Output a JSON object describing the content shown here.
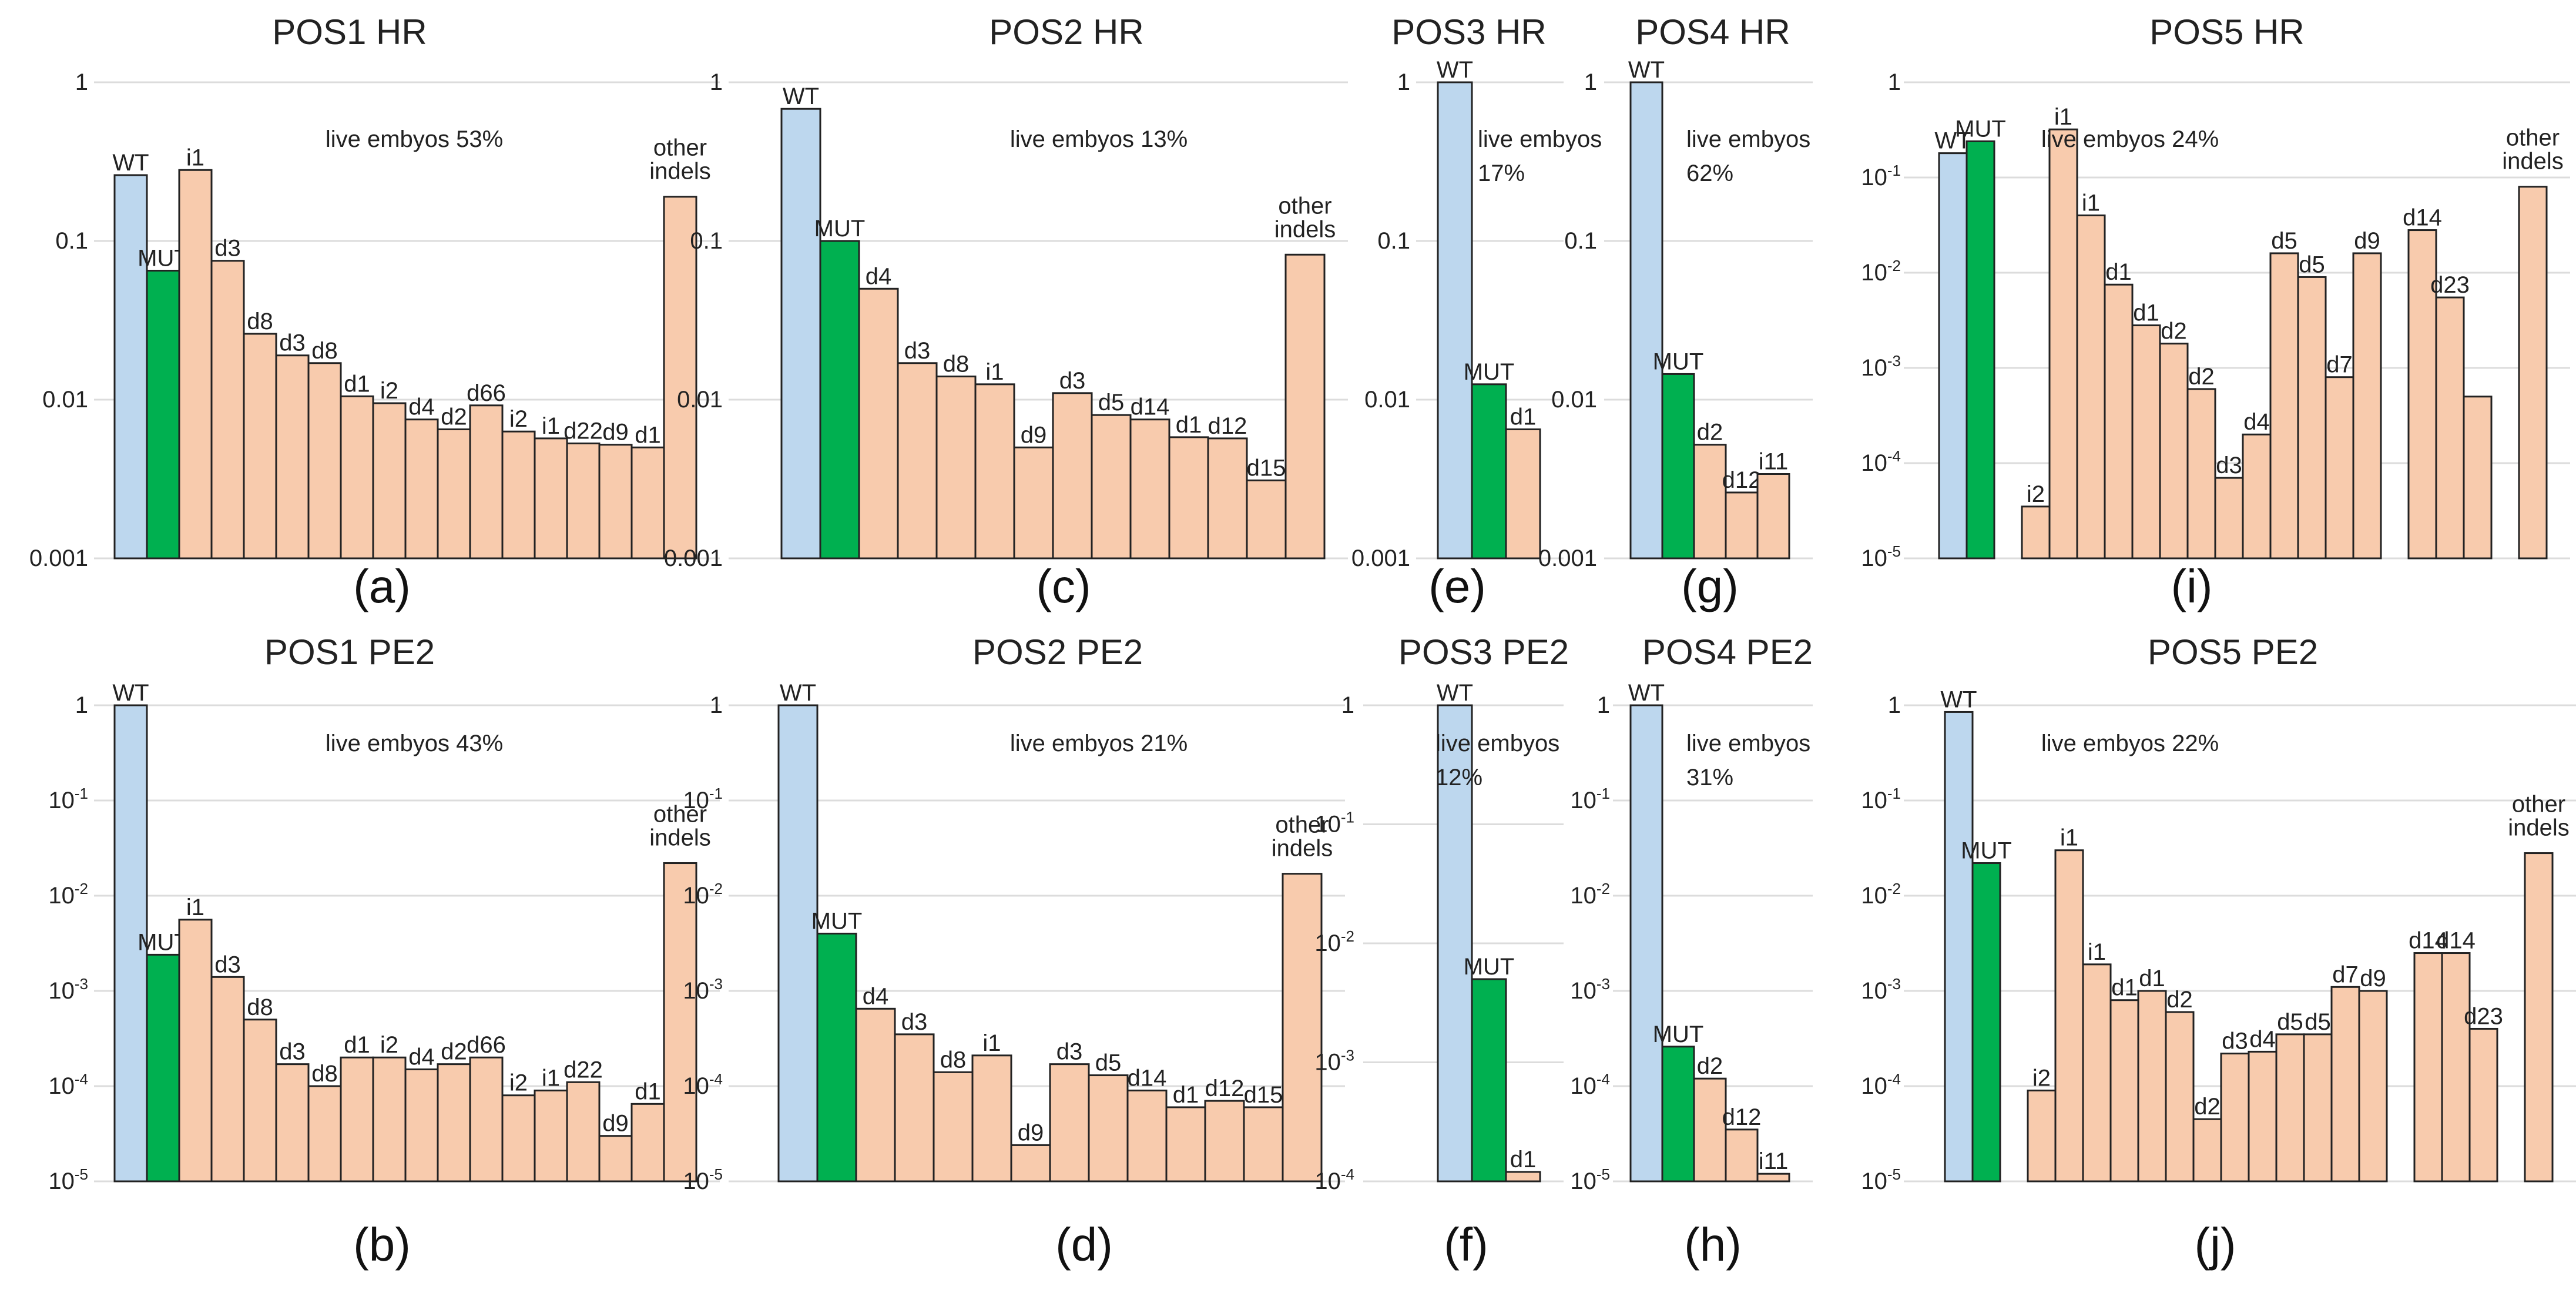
{
  "colors": {
    "wt": "#bdd7ee",
    "mut": "#00b050",
    "indel": "#f8cbad",
    "edge": "#222222",
    "grid": "#dcdcdc"
  },
  "chart_data": [
    {
      "type": "bar",
      "scale": "log",
      "ylim": [
        0.001,
        1
      ],
      "ticks": [
        "1",
        "0.1",
        "0.01",
        "0.001"
      ],
      "title": "POS1 HR",
      "panel": "(a)",
      "note": [
        "live embyos 53%"
      ],
      "categories": [
        "WT",
        "MUT",
        "i1",
        "d3",
        "d8",
        "d3",
        "d8",
        "d1",
        "i2",
        "d4",
        "d2",
        "d66",
        "i2",
        "i1",
        "d22",
        "d9",
        "d1",
        "other indels"
      ],
      "values": [
        0.26,
        0.065,
        0.28,
        0.075,
        0.026,
        0.019,
        0.017,
        0.0105,
        0.0095,
        0.0075,
        0.0065,
        0.0092,
        0.0063,
        0.0057,
        0.0053,
        0.0052,
        0.005,
        0.19
      ],
      "kinds": [
        "wt",
        "mut",
        "indel",
        "indel",
        "indel",
        "indel",
        "indel",
        "indel",
        "indel",
        "indel",
        "indel",
        "indel",
        "indel",
        "indel",
        "indel",
        "indel",
        "indel",
        "indel"
      ]
    },
    {
      "type": "bar",
      "scale": "log",
      "ylim": [
        1e-05,
        1
      ],
      "ticks": [
        "1",
        "10-1",
        "10-2",
        "10-3",
        "10-4",
        "10-5"
      ],
      "title": "POS1 PE2",
      "panel": "(b)",
      "note": [
        "live embyos 43%"
      ],
      "categories": [
        "WT",
        "MUT",
        "i1",
        "d3",
        "d8",
        "d3",
        "d8",
        "d1",
        "i2",
        "d4",
        "d2",
        "d66",
        "i2",
        "i1",
        "d22",
        "d9",
        "d1",
        "other indels"
      ],
      "values": [
        1,
        0.0024,
        0.0056,
        0.0014,
        0.0005,
        0.00017,
        0.0001,
        0.0002,
        0.0002,
        0.00015,
        0.00017,
        0.0002,
        8e-05,
        9e-05,
        0.00011,
        3e-05,
        6.5e-05,
        0.022
      ],
      "kinds": [
        "wt",
        "mut",
        "indel",
        "indel",
        "indel",
        "indel",
        "indel",
        "indel",
        "indel",
        "indel",
        "indel",
        "indel",
        "indel",
        "indel",
        "indel",
        "indel",
        "indel",
        "indel"
      ]
    },
    {
      "type": "bar",
      "scale": "log",
      "ylim": [
        0.001,
        1
      ],
      "ticks": [
        "1",
        "0.1",
        "0.01",
        "0.001"
      ],
      "title": "POS2 HR",
      "panel": "(c)",
      "note": [
        "live embyos 13%"
      ],
      "categories": [
        "WT",
        "MUT",
        "d4",
        "d3",
        "d8",
        "i1",
        "d9",
        "d3",
        "d5",
        "d14",
        "d1",
        "d12",
        "d15",
        "other indels"
      ],
      "values": [
        0.68,
        0.1,
        0.05,
        0.017,
        0.014,
        0.0125,
        0.005,
        0.011,
        0.008,
        0.0075,
        0.0058,
        0.0057,
        0.0031,
        0.082
      ],
      "kinds": [
        "wt",
        "mut",
        "indel",
        "indel",
        "indel",
        "indel",
        "indel",
        "indel",
        "indel",
        "indel",
        "indel",
        "indel",
        "indel",
        "indel"
      ]
    },
    {
      "type": "bar",
      "scale": "log",
      "ylim": [
        1e-05,
        1
      ],
      "ticks": [
        "1",
        "10-1",
        "10-2",
        "10-3",
        "10-4",
        "10-5"
      ],
      "title": "POS2 PE2",
      "panel": "(d)",
      "note": [
        "live embyos 21%"
      ],
      "categories": [
        "WT",
        "MUT",
        "d4",
        "d3",
        "d8",
        "i1",
        "d9",
        "d3",
        "d5",
        "d14",
        "d1",
        "d12",
        "d15",
        "other indels"
      ],
      "values": [
        1,
        0.004,
        0.00065,
        0.00035,
        0.00014,
        0.00021,
        2.4e-05,
        0.00017,
        0.00013,
        9e-05,
        6e-05,
        7e-05,
        6e-05,
        0.017
      ],
      "kinds": [
        "wt",
        "mut",
        "indel",
        "indel",
        "indel",
        "indel",
        "indel",
        "indel",
        "indel",
        "indel",
        "indel",
        "indel",
        "indel",
        "indel"
      ]
    },
    {
      "type": "bar",
      "scale": "log",
      "ylim": [
        0.001,
        1
      ],
      "ticks": [
        "1",
        "0.1",
        "0.01",
        "0.001"
      ],
      "title": "POS3 HR",
      "panel": "(e)",
      "note": [
        "live embyos",
        "17%"
      ],
      "categories": [
        "WT",
        "MUT",
        "d1"
      ],
      "values": [
        1,
        0.0125,
        0.0065
      ],
      "kinds": [
        "wt",
        "mut",
        "indel"
      ]
    },
    {
      "type": "bar",
      "scale": "log",
      "ylim": [
        0.0001,
        1
      ],
      "ticks": [
        "1",
        "10-1",
        "10-2",
        "10-3",
        "10-4"
      ],
      "title": "POS3 PE2",
      "panel": "(f)",
      "note": [
        "live embyos",
        "12%"
      ],
      "categories": [
        "WT",
        "MUT",
        "d1"
      ],
      "values": [
        1,
        0.005,
        0.00012
      ],
      "kinds": [
        "wt",
        "mut",
        "indel"
      ]
    },
    {
      "type": "bar",
      "scale": "log",
      "ylim": [
        0.001,
        1
      ],
      "ticks": [
        "1",
        "0.1",
        "0.01",
        "0.001"
      ],
      "title": "POS4 HR",
      "panel": "(g)",
      "note": [
        "live embyos",
        "62%"
      ],
      "categories": [
        "WT",
        "MUT",
        "d2",
        "d12",
        "i11"
      ],
      "values": [
        1,
        0.0145,
        0.0052,
        0.0026,
        0.0034
      ],
      "kinds": [
        "wt",
        "mut",
        "indel",
        "indel",
        "indel"
      ]
    },
    {
      "type": "bar",
      "scale": "log",
      "ylim": [
        1e-05,
        1
      ],
      "ticks": [
        "1",
        "10-1",
        "10-2",
        "10-3",
        "10-4",
        "10-5"
      ],
      "title": "POS4 PE2",
      "panel": "(h)",
      "note": [
        "live embyos",
        "31%"
      ],
      "categories": [
        "WT",
        "MUT",
        "d2",
        "d12",
        "i11"
      ],
      "values": [
        1,
        0.00026,
        0.00012,
        3.5e-05,
        1.2e-05
      ],
      "kinds": [
        "wt",
        "mut",
        "indel",
        "indel",
        "indel"
      ]
    },
    {
      "type": "bar",
      "scale": "log",
      "ylim": [
        1e-05,
        1
      ],
      "ticks": [
        "1",
        "10-1",
        "10-2",
        "10-3",
        "10-4",
        "10-5"
      ],
      "title": "POS5 HR",
      "panel": "(i)",
      "note": [
        "live embyos 24%"
      ],
      "categories": [
        "WT",
        "MUT",
        "",
        "i2",
        "i1",
        "i1",
        "d1",
        "d1",
        "d2",
        "d2",
        "d3",
        "d4",
        "d5",
        "d5",
        "d7",
        "d9",
        "d14",
        "d14",
        "d23",
        "",
        "",
        "other indels"
      ],
      "values": [
        0.18,
        0.24,
        null,
        3.5e-05,
        0.32,
        0.04,
        0.0075,
        0.0028,
        0.0018,
        0.0006,
        7e-05,
        0.0002,
        0.016,
        0.009,
        0.0008,
        0.016,
        null,
        0.028,
        0.0055,
        0.0005,
        null,
        0.08
      ],
      "kinds": [
        "wt",
        "mut",
        "gap",
        "indel",
        "indel",
        "indel",
        "indel",
        "indel",
        "indel",
        "indel",
        "indel",
        "indel",
        "indel",
        "indel",
        "indel",
        "indel",
        "gap",
        "indel",
        "indel",
        "indel",
        "gap",
        "indel"
      ]
    },
    {
      "type": "bar",
      "scale": "log",
      "ylim": [
        1e-05,
        1
      ],
      "ticks": [
        "1",
        "10-1",
        "10-2",
        "10-3",
        "10-4",
        "10-5"
      ],
      "title": "POS5 PE2",
      "panel": "(j)",
      "note": [
        "live embyos 22%"
      ],
      "categories": [
        "WT",
        "MUT",
        "",
        "i2",
        "i1",
        "i1",
        "d1",
        "d1",
        "d2",
        "d2",
        "d3",
        "d4",
        "d5",
        "d5",
        "d7",
        "d9",
        "",
        "d14",
        "d14",
        "d23",
        "",
        "other indels"
      ],
      "values": [
        0.85,
        0.022,
        null,
        9e-05,
        0.03,
        0.0019,
        0.0008,
        0.001,
        0.0006,
        4.5e-05,
        0.00022,
        0.00023,
        0.00035,
        0.00035,
        0.0011,
        0.001,
        null,
        0.0025,
        0.0025,
        0.0004,
        null,
        0.028
      ],
      "kinds": [
        "wt",
        "mut",
        "gap",
        "indel",
        "indel",
        "indel",
        "indel",
        "indel",
        "indel",
        "indel",
        "indel",
        "indel",
        "indel",
        "indel",
        "indel",
        "indel",
        "gap",
        "indel",
        "indel",
        "indel",
        "gap",
        "indel"
      ]
    }
  ]
}
